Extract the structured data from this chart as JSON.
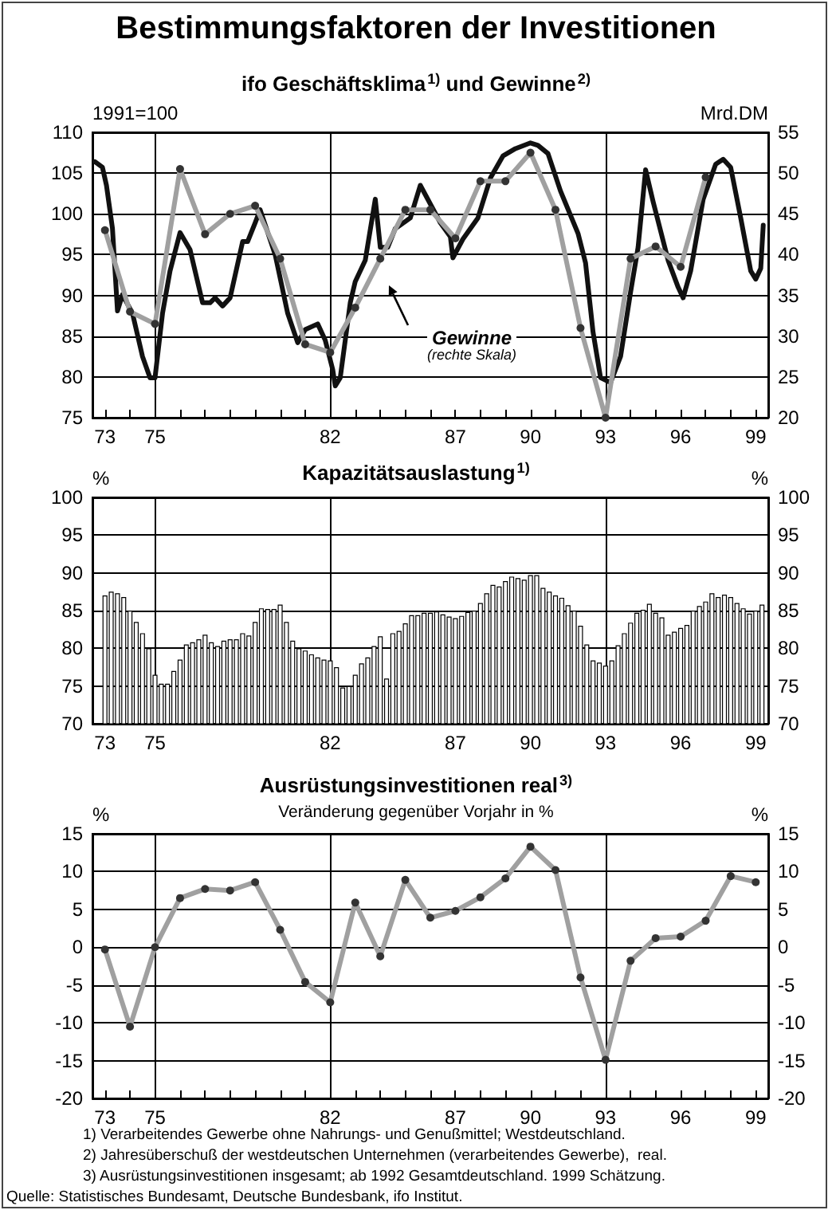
{
  "chart_data": [
    {
      "type": "line",
      "title": "Bestimmungsfaktoren der Investitionen",
      "subtitle": "ifo Geschäftsklima$^{1)}$ und Gewinne$^{2)}$",
      "ylabel": "1991=100",
      "y2label": "Mrd.DM",
      "annotations": [
        "(rechte Skala)"
      ],
      "xlim": [
        72.5,
        99.5
      ],
      "xticks": [
        73,
        {
          "value": 74,
          "label": null
        },
        75,
        {
          "value": 76,
          "label": null
        },
        {
          "value": 77,
          "label": null
        },
        {
          "value": 78,
          "label": null
        },
        {
          "value": 79,
          "label": null
        },
        {
          "value": 80,
          "label": null
        },
        {
          "value": 81,
          "label": null
        },
        82,
        {
          "value": 83,
          "label": null
        },
        {
          "value": 84,
          "label": null
        },
        {
          "value": 85,
          "label": null
        },
        {
          "value": 86,
          "label": null
        },
        87,
        {
          "value": 88,
          "label": null
        },
        {
          "value": 89,
          "label": null
        },
        90,
        {
          "value": 91,
          "label": null
        },
        {
          "value": 92,
          "label": null
        },
        93,
        {
          "value": 94,
          "label": null
        },
        {
          "value": 95,
          "label": null
        },
        96,
        {
          "value": 97,
          "label": null
        },
        {
          "value": 98,
          "label": null
        },
        99
      ],
      "ylim": [
        75,
        110
      ],
      "yticks": [
        75,
        80,
        85,
        90,
        95,
        100,
        105,
        110
      ],
      "y2lim": [
        20,
        55
      ],
      "y2ticks": [
        20,
        25,
        30,
        35,
        40,
        45,
        50,
        55
      ],
      "grid": "y",
      "marker": "circle",
      "line_style": "solid",
      "ref_lines": [
        {
          "axis": "x",
          "value": 75
        },
        {
          "axis": "x",
          "value": 82
        },
        {
          "axis": "x",
          "value": 93
        }
      ],
      "series": [
        {
          "color": "#111111",
          "marker": "none",
          "x": [
            72.6,
            72.9,
            73.06,
            73.3,
            73.5,
            73.7,
            74.1,
            74.5,
            74.8,
            75.0,
            75.3,
            75.6,
            76.0,
            76.4,
            76.9,
            77.2,
            77.4,
            77.7,
            78.0,
            78.5,
            78.7,
            79.0,
            79.2,
            79.8,
            80.3,
            80.7,
            81.0,
            81.5,
            81.8,
            82.1,
            82.2,
            82.4,
            82.8,
            83.0,
            83.4,
            83.8,
            84.0,
            84.3,
            84.6,
            85.2,
            85.6,
            86.0,
            86.4,
            86.8,
            86.9,
            87.3,
            87.9,
            88.4,
            88.9,
            89.4,
            90.0,
            90.3,
            90.7,
            91.2,
            91.9,
            92.2,
            92.5,
            92.8,
            93.2,
            93.6,
            94.0,
            94.3,
            94.6,
            94.9,
            95.5,
            95.9,
            96.1,
            96.4,
            96.9,
            97.4,
            97.7,
            98.0,
            98.4,
            98.8,
            99.0,
            99.2,
            99.3
          ],
          "values": [
            106.4,
            105.7,
            103.5,
            98.2,
            88.1,
            90.1,
            87.8,
            82.5,
            79.9,
            79.9,
            87.8,
            93.0,
            97.7,
            95.6,
            89.1,
            89.1,
            89.7,
            88.7,
            89.7,
            96.6,
            96.6,
            98.9,
            100.5,
            95.0,
            87.8,
            84.2,
            85.8,
            86.5,
            84.5,
            80.9,
            78.9,
            79.9,
            89.1,
            91.7,
            94.3,
            101.8,
            95.9,
            95.9,
            98.2,
            99.5,
            103.5,
            101.2,
            98.9,
            97.2,
            94.6,
            96.9,
            99.5,
            104.4,
            107.1,
            108.0,
            108.7,
            108.4,
            107.4,
            102.8,
            97.6,
            94.0,
            85.5,
            79.9,
            79.3,
            82.5,
            90.4,
            95.9,
            105.4,
            101.5,
            94.3,
            91.0,
            89.7,
            93.0,
            101.8,
            106.1,
            106.7,
            105.7,
            99.5,
            93.0,
            92.0,
            93.3,
            98.6
          ]
        },
        {
          "name": "Gewinne",
          "color": "#a0a0a0",
          "axis": "y2",
          "x": [
            73,
            74,
            75,
            76,
            77,
            78,
            79,
            80,
            81,
            82,
            83,
            84,
            85,
            86,
            87,
            88,
            89,
            90,
            91,
            92,
            93,
            94,
            95,
            96,
            97
          ],
          "values": [
            43,
            33,
            31.5,
            50.5,
            42.5,
            45,
            46,
            39.5,
            29,
            28,
            33.5,
            39.5,
            45.5,
            45.5,
            42,
            49,
            49,
            52.5,
            45.5,
            31,
            20,
            39.5,
            41,
            38.5,
            49.5
          ]
        }
      ]
    },
    {
      "type": "bar",
      "title": "Kapazitätsauslastung$^{1)}$",
      "ylabel": "%",
      "y2label": "%",
      "xlim": [
        72.5,
        99.5
      ],
      "xticks": [
        73,
        {
          "value": 74,
          "label": null
        },
        75,
        {
          "value": 76,
          "label": null
        },
        {
          "value": 77,
          "label": null
        },
        {
          "value": 78,
          "label": null
        },
        {
          "value": 79,
          "label": null
        },
        {
          "value": 80,
          "label": null
        },
        {
          "value": 81,
          "label": null
        },
        82,
        {
          "value": 83,
          "label": null
        },
        {
          "value": 84,
          "label": null
        },
        {
          "value": 85,
          "label": null
        },
        {
          "value": 86,
          "label": null
        },
        87,
        {
          "value": 88,
          "label": null
        },
        {
          "value": 89,
          "label": null
        },
        90,
        {
          "value": 91,
          "label": null
        },
        {
          "value": 92,
          "label": null
        },
        93,
        {
          "value": 94,
          "label": null
        },
        {
          "value": 95,
          "label": null
        },
        96,
        {
          "value": 97,
          "label": null
        },
        {
          "value": 98,
          "label": null
        },
        99
      ],
      "ylim": [
        70,
        100
      ],
      "yticks": [
        70,
        75,
        80,
        85,
        90,
        95,
        100
      ],
      "y2lim": [
        70,
        100
      ],
      "y2ticks": [
        70,
        75,
        80,
        85,
        90,
        95,
        100
      ],
      "grid": "y",
      "ref_lines": [
        {
          "axis": "x",
          "value": 75
        },
        {
          "axis": "x",
          "value": 82
        },
        {
          "axis": "x",
          "value": 93
        }
      ],
      "x": [
        73,
        73.25,
        73.5,
        73.75,
        74,
        74.25,
        74.5,
        74.75,
        75,
        75.25,
        75.5,
        75.75,
        76,
        76.25,
        76.5,
        76.75,
        77,
        77.25,
        77.5,
        77.75,
        78,
        78.25,
        78.5,
        78.75,
        79,
        79.25,
        79.5,
        79.75,
        80,
        80.25,
        80.5,
        80.75,
        81,
        81.25,
        81.5,
        81.75,
        82,
        82.25,
        82.5,
        82.75,
        83,
        83.25,
        83.5,
        83.75,
        84,
        84.25,
        84.5,
        84.75,
        85,
        85.25,
        85.5,
        85.75,
        86,
        86.25,
        86.5,
        86.75,
        87,
        87.25,
        87.5,
        87.75,
        88,
        88.25,
        88.5,
        88.75,
        89,
        89.25,
        89.5,
        89.75,
        90,
        90.25,
        90.5,
        90.75,
        91,
        91.25,
        91.5,
        91.75,
        92,
        92.25,
        92.5,
        92.75,
        93,
        93.25,
        93.5,
        93.75,
        94,
        94.25,
        94.5,
        94.75,
        95,
        95.25,
        95.5,
        95.75,
        96,
        96.25,
        96.5,
        96.75,
        97,
        97.25,
        97.5,
        97.75,
        98,
        98.25,
        98.5,
        98.75,
        99,
        99.25
      ],
      "color": "#ffffff",
      "values": [
        87,
        87.5,
        87.3,
        86.8,
        85,
        83.5,
        82,
        80,
        76.5,
        75.3,
        75.3,
        77,
        78.5,
        80.5,
        80.8,
        81.2,
        81.8,
        80.8,
        80.3,
        81,
        81.2,
        81.2,
        82,
        81.7,
        83.5,
        85.3,
        85.2,
        85.2,
        85.8,
        83.5,
        81,
        80,
        79.7,
        79.2,
        78.8,
        78.5,
        78.4,
        77.5,
        74.8,
        75,
        76.5,
        78,
        78.8,
        80.3,
        81.6,
        76,
        82,
        82.3,
        83.3,
        84.4,
        84.4,
        84.7,
        84.7,
        84.9,
        84.5,
        84.2,
        84,
        84.3,
        84.8,
        85,
        86,
        87.3,
        88.4,
        88.2,
        88.9,
        89.5,
        89.3,
        89.1,
        89.7,
        89.7,
        88,
        87.5,
        87,
        86.7,
        85.7,
        85,
        83,
        80.5,
        78.4,
        78.1,
        77.7,
        78.4,
        80.4,
        82,
        83.4,
        84.7,
        85.1,
        85.9,
        84.7,
        84.1,
        81.8,
        82.2,
        82.7,
        83.1,
        85,
        85.6,
        86.2,
        87.3,
        86.8,
        87.1,
        86.8,
        86,
        85.3,
        84.6,
        85,
        85.8
      ]
    },
    {
      "type": "line",
      "title": "Ausrüstungsinvestitionen real$^{3)}$",
      "subtitle": "Veränderung gegenüber Vorjahr in %",
      "ylabel": "%",
      "y2label": "%",
      "annotations": [
        "1) Verarbeitendes Gewerbe ohne Nahrungs- und Genußmittel; Westdeutschland.",
        "2) Jahresüberschuß der westdeutschen Unternehmen (verarbeitendes Gewerbe),  real.",
        "3) Ausrüstungsinvestitionen insgesamt; ab 1992 Gesamtdeutschland. 1999 Schätzung.",
        "Quelle: Statistisches Bundesamt, Deutsche Bundesbank, ifo Institut."
      ],
      "xlim": [
        72.5,
        99.5
      ],
      "xticks": [
        73,
        {
          "value": 74,
          "label": null
        },
        75,
        {
          "value": 76,
          "label": null
        },
        {
          "value": 77,
          "label": null
        },
        {
          "value": 78,
          "label": null
        },
        {
          "value": 79,
          "label": null
        },
        {
          "value": 80,
          "label": null
        },
        {
          "value": 81,
          "label": null
        },
        82,
        {
          "value": 83,
          "label": null
        },
        {
          "value": 84,
          "label": null
        },
        {
          "value": 85,
          "label": null
        },
        {
          "value": 86,
          "label": null
        },
        87,
        {
          "value": 88,
          "label": null
        },
        {
          "value": 89,
          "label": null
        },
        90,
        {
          "value": 91,
          "label": null
        },
        {
          "value": 92,
          "label": null
        },
        93,
        {
          "value": 94,
          "label": null
        },
        {
          "value": 95,
          "label": null
        },
        96,
        {
          "value": 97,
          "label": null
        },
        {
          "value": 98,
          "label": null
        },
        99
      ],
      "ylim": [
        -20,
        15
      ],
      "yticks": [
        -20,
        -15,
        -10,
        -5,
        0,
        5,
        10,
        15
      ],
      "y2lim": [
        -20,
        15
      ],
      "y2ticks": [
        -20,
        -15,
        -10,
        -5,
        0,
        5,
        10,
        15
      ],
      "grid": "y",
      "marker": "circle",
      "line_style": "solid",
      "ref_lines": [
        {
          "axis": "x",
          "value": 75
        },
        {
          "axis": "x",
          "value": 82
        },
        {
          "axis": "x",
          "value": 93
        }
      ],
      "x": [
        73,
        74,
        75,
        76,
        77,
        78,
        79,
        80,
        81,
        82,
        83,
        84,
        85,
        86,
        87,
        88,
        89,
        90,
        91,
        92,
        93,
        94,
        95,
        96,
        97,
        98,
        99
      ],
      "series": [
        {
          "color": "#a0a0a0",
          "values": [
            -0.3,
            -10.5,
            0,
            6.5,
            7.7,
            7.5,
            8.6,
            2.3,
            -4.6,
            -7.3,
            5.9,
            -1.2,
            8.9,
            3.9,
            4.8,
            6.6,
            9.1,
            13.3,
            10.2,
            -4,
            -14.9,
            -1.8,
            1.2,
            1.4,
            3.5,
            9.4,
            8.6
          ]
        }
      ]
    }
  ]
}
